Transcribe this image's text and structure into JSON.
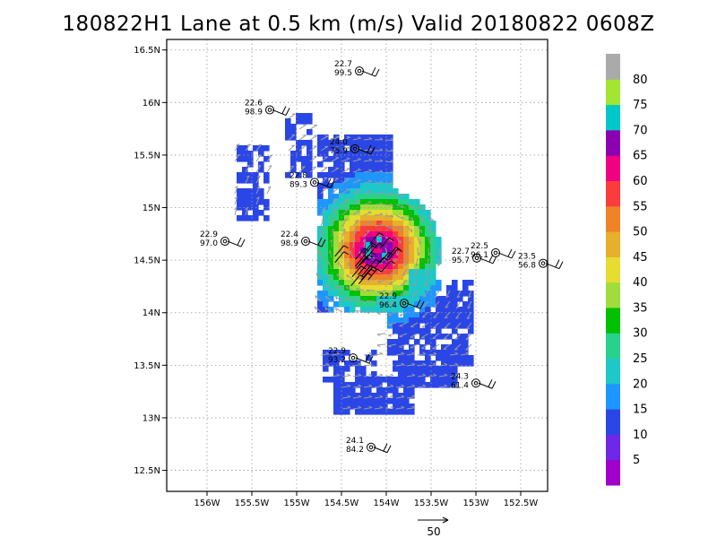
{
  "title": "180822H1 Lane at 0.5 km (m/s) Valid 20180822 0608Z",
  "lat_axis": {
    "labels": [
      {
        "lat": 16.5,
        "text": "16.5N"
      },
      {
        "lat": 16.0,
        "text": "16N"
      },
      {
        "lat": 15.5,
        "text": "15.5N"
      },
      {
        "lat": 15.0,
        "text": "15N"
      },
      {
        "lat": 14.5,
        "text": "14.5N"
      },
      {
        "lat": 14.0,
        "text": "14N"
      },
      {
        "lat": 13.5,
        "text": "13.5N"
      },
      {
        "lat": 13.0,
        "text": "13N"
      },
      {
        "lat": 12.5,
        "text": "12.5N"
      }
    ],
    "range": [
      12.3,
      16.6
    ]
  },
  "lon_axis": {
    "labels": [
      {
        "lon": -156.0,
        "text": "156W"
      },
      {
        "lon": -155.5,
        "text": "155.5W"
      },
      {
        "lon": -155.0,
        "text": "155W"
      },
      {
        "lon": -154.5,
        "text": "154.5W"
      },
      {
        "lon": -154.0,
        "text": "154W"
      },
      {
        "lon": -153.5,
        "text": "153.5W"
      },
      {
        "lon": -153.0,
        "text": "153W"
      },
      {
        "lon": -152.5,
        "text": "152.5W"
      }
    ],
    "range": [
      -156.45,
      -152.2
    ]
  },
  "grid": true,
  "colorbar": {
    "labels": [
      "5",
      "10",
      "15",
      "20",
      "25",
      "30",
      "35",
      "40",
      "45",
      "50",
      "55",
      "60",
      "65",
      "70",
      "75",
      "80"
    ],
    "colors": [
      "#a000c8",
      "#6e28e6",
      "#2a46e6",
      "#1e96ff",
      "#1ec8c8",
      "#28d28c",
      "#00c000",
      "#a0dc3c",
      "#e6dc32",
      "#e6af2d",
      "#f08228",
      "#fa3c3c",
      "#f00082",
      "#8c00b4",
      "#00c8c8",
      "#a0e632",
      "#aaaaaa"
    ]
  },
  "storm_center": {
    "lat": 14.6,
    "lon": -154.1
  },
  "stations": [
    {
      "lat": 16.3,
      "lon": -154.3,
      "wind": "22.7",
      "pres": "99.5"
    },
    {
      "lat": 15.93,
      "lon": -155.3,
      "wind": "22.6",
      "pres": "98.9"
    },
    {
      "lat": 15.56,
      "lon": -154.35,
      "wind": "24.0",
      "pres": "75.9"
    },
    {
      "lat": 15.24,
      "lon": -154.8,
      "wind": "22.8",
      "pres": "89.3"
    },
    {
      "lat": 14.68,
      "lon": -155.8,
      "wind": "22.9",
      "pres": "97.0"
    },
    {
      "lat": 14.68,
      "lon": -154.9,
      "wind": "22.4",
      "pres": "98.9"
    },
    {
      "lat": 14.09,
      "lon": -153.8,
      "wind": "22.9",
      "pres": "96.4"
    },
    {
      "lat": 14.52,
      "lon": -152.99,
      "wind": "22.7",
      "pres": "95.7"
    },
    {
      "lat": 14.57,
      "lon": -152.78,
      "wind": "22.5",
      "pres": "96.1"
    },
    {
      "lat": 14.47,
      "lon": -152.25,
      "wind": "23.5",
      "pres": "56.8"
    },
    {
      "lat": 13.57,
      "lon": -154.37,
      "wind": "22.9",
      "pres": "93.2"
    },
    {
      "lat": 13.33,
      "lon": -153.0,
      "wind": "24.3",
      "pres": "61.4"
    },
    {
      "lat": 12.72,
      "lon": -154.17,
      "wind": "24.1",
      "pres": "84.2"
    }
  ],
  "reference_vector": {
    "label": "50",
    "speed": 50
  }
}
